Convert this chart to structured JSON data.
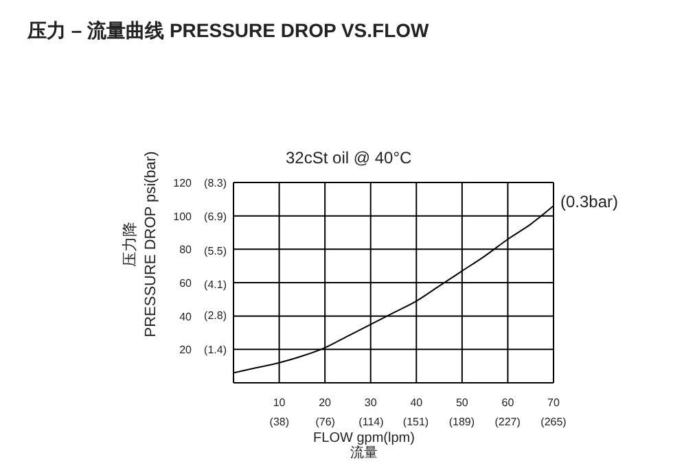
{
  "chart_data": {
    "type": "line",
    "title": "压力 – 流量曲线 PRESSURE DROP VS.FLOW",
    "subtitle": "32cSt oil @ 40°C",
    "xlabel": "FLOW gpm(lpm)\n流量",
    "ylabel": "压力降\nPRESSURE DROP psi(bar)",
    "annotations": [
      "(0.3bar)"
    ],
    "x": [
      0,
      5,
      10,
      15,
      20,
      25,
      30,
      35,
      40,
      45,
      50,
      55,
      60,
      65,
      70
    ],
    "series": [
      {
        "color": "#000000",
        "values": [
          6,
          9,
          12,
          16,
          21,
          28,
          35,
          42,
          49,
          58,
          67,
          76,
          86,
          95,
          106
        ]
      }
    ],
    "xlim": [
      0,
      70
    ],
    "ylim": [
      0,
      120
    ],
    "xticks": [
      10,
      20,
      30,
      40,
      50,
      60,
      70
    ],
    "yticks": [
      20,
      40,
      60,
      80,
      100,
      120
    ],
    "x2lim": [
      0,
      265
    ],
    "x2ticks": [
      {
        "value": 38,
        "label": "(38)"
      },
      {
        "value": 76,
        "label": "(76)"
      },
      {
        "value": 114,
        "label": "(114)"
      },
      {
        "value": 151,
        "label": "(151)"
      },
      {
        "value": 189,
        "label": "(189)"
      },
      {
        "value": 227,
        "label": "(227)"
      },
      {
        "value": 265,
        "label": "(265)"
      }
    ],
    "y2lim": [
      0,
      8.3
    ],
    "y2ticks": [
      {
        "value": 1.4,
        "label": "(1.4)"
      },
      {
        "value": 2.8,
        "label": "(2.8)"
      },
      {
        "value": 4.1,
        "label": "(4.1)"
      },
      {
        "value": 5.5,
        "label": "(5.5)"
      },
      {
        "value": 6.9,
        "label": "(6.9)"
      },
      {
        "value": 8.3,
        "label": "(8.3)"
      }
    ],
    "grid": true,
    "marker": "none",
    "line_style": "solid",
    "legend": false
  }
}
